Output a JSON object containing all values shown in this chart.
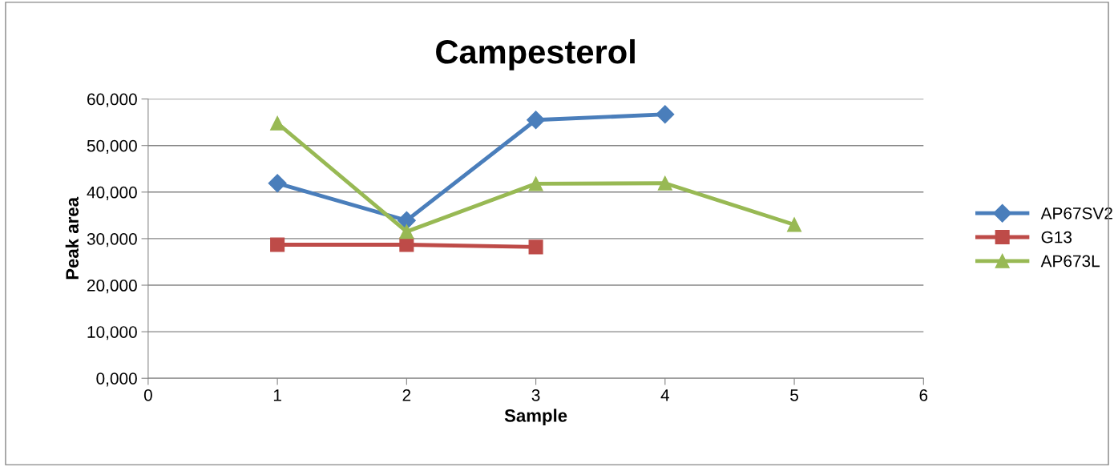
{
  "chart_data": {
    "type": "line",
    "title": "Campesterol",
    "xlabel": "Sample",
    "ylabel": "Peak area",
    "xlim": [
      0,
      6
    ],
    "xticks": [
      0,
      1,
      2,
      3,
      4,
      5,
      6
    ],
    "ylim": [
      0,
      60000
    ],
    "yticks": [
      {
        "value": 0,
        "label": "0,000"
      },
      {
        "value": 10000,
        "label": "10,000"
      },
      {
        "value": 20000,
        "label": "20,000"
      },
      {
        "value": 30000,
        "label": "30,000"
      },
      {
        "value": 40000,
        "label": "40,000"
      },
      {
        "value": 50000,
        "label": "50,000"
      },
      {
        "value": 60000,
        "label": "60,000"
      }
    ],
    "grid": "y",
    "legend": "right",
    "series": [
      {
        "name": "AP67SV2",
        "color": "#4a7ebb",
        "marker": "diamond",
        "x": [
          1,
          2,
          3,
          4
        ],
        "values": [
          41900,
          33900,
          55500,
          56700
        ]
      },
      {
        "name": "G13",
        "color": "#be4b48",
        "marker": "square",
        "x": [
          1,
          2,
          3
        ],
        "values": [
          28700,
          28700,
          28200
        ]
      },
      {
        "name": "AP673L",
        "color": "#98b954",
        "marker": "triangle",
        "x": [
          1,
          2,
          3,
          4,
          5
        ],
        "values": [
          54800,
          31500,
          41800,
          41900,
          33000
        ]
      }
    ]
  }
}
